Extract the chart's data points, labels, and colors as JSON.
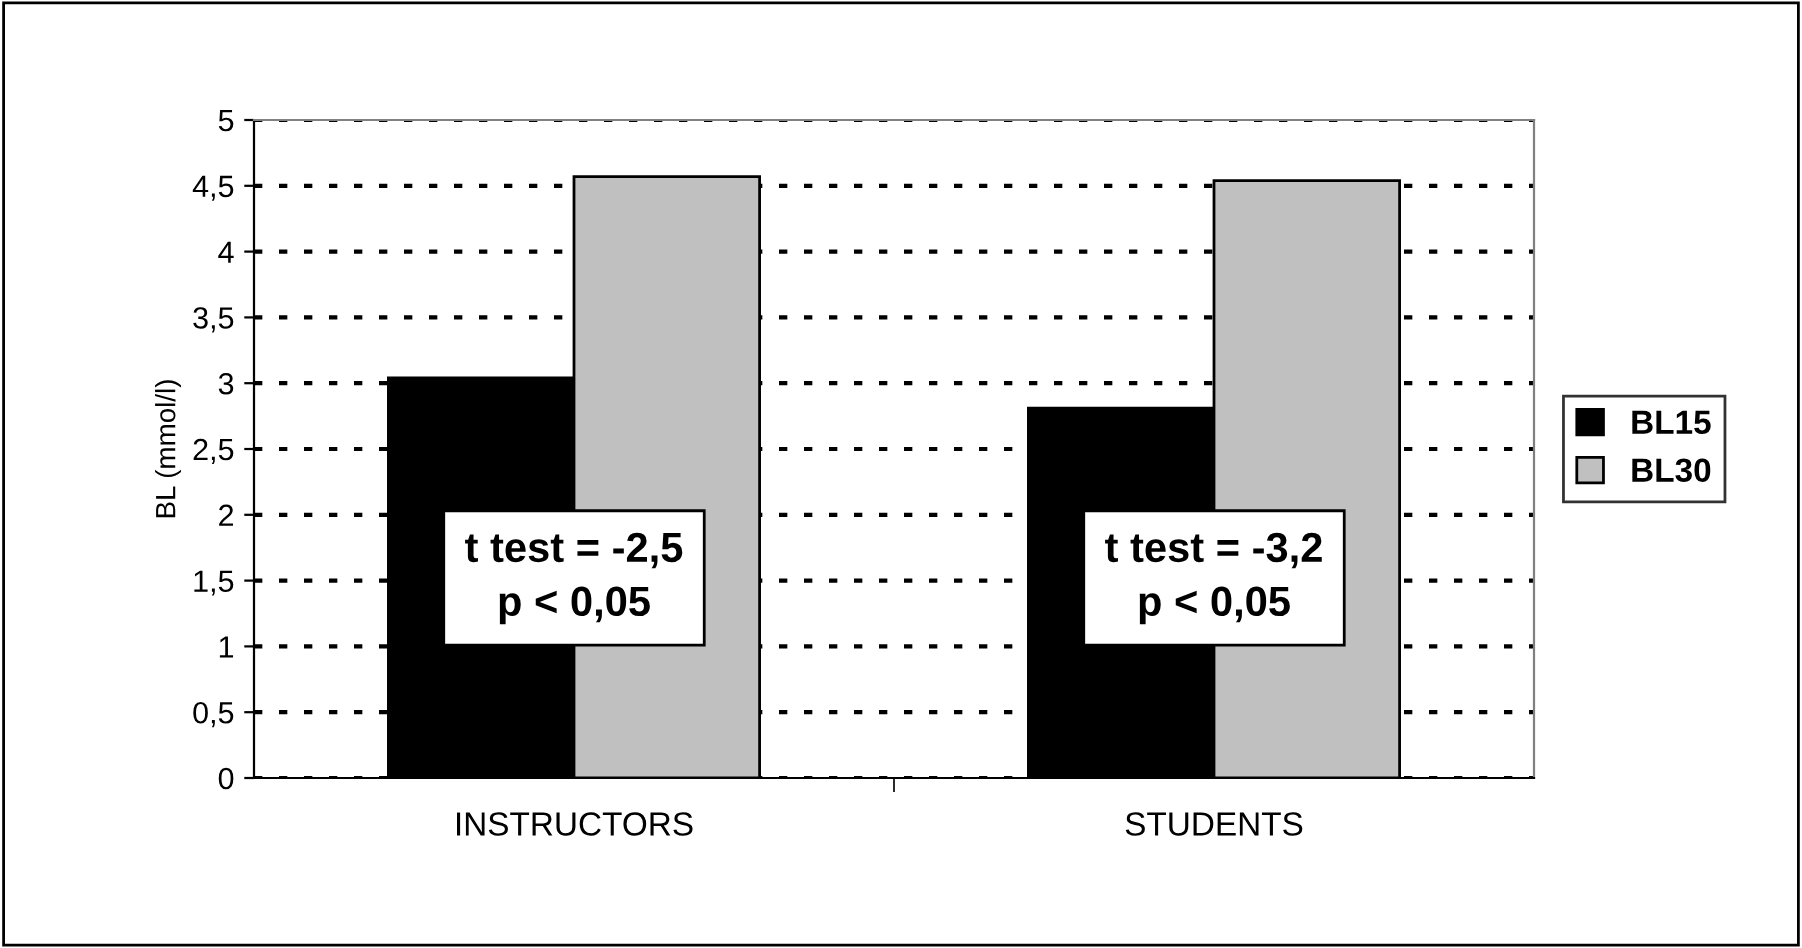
{
  "chart_data": {
    "type": "bar",
    "ylabel": "BL (mmol/l)",
    "categories": [
      "INSTRUCTORS",
      "STUDENTS"
    ],
    "series": [
      {
        "name": "BL15",
        "color": "#000000",
        "values": [
          3.04,
          2.81
        ]
      },
      {
        "name": "BL30",
        "color": "#c0c0c0",
        "values": [
          4.57,
          4.54
        ]
      }
    ],
    "ylim": [
      0,
      5
    ],
    "yticks": [
      0,
      {
        "value": 0.5,
        "label": "0,5"
      },
      1,
      {
        "value": 1.5,
        "label": "1,5"
      },
      2,
      {
        "value": 2.5,
        "label": "2,5"
      },
      3,
      {
        "value": 3.5,
        "label": "3,5"
      },
      4,
      {
        "value": 4.5,
        "label": "4,5"
      },
      5
    ],
    "grid": "y",
    "legend": "right",
    "annotations": [
      "t test = -2,5\np < 0,05",
      "t test = -3,2\np < 0,05"
    ]
  }
}
